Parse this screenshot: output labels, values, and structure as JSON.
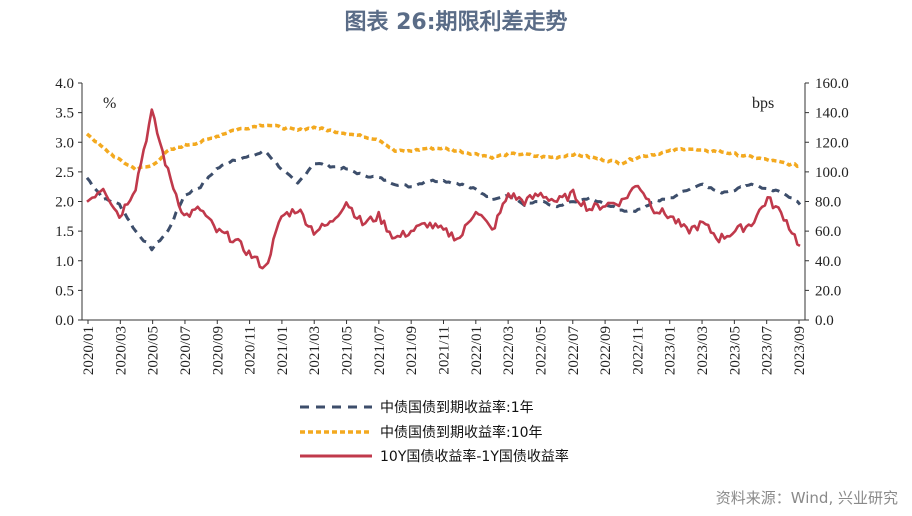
{
  "title": "图表 26:期限利差走势",
  "source": "资料来源：Wind, 兴业研究",
  "chart_data": {
    "type": "line",
    "title": "图表 26:期限利差走势",
    "left_axis": {
      "unit": "%",
      "ylim": [
        0,
        4
      ],
      "ticks": [
        "0.0",
        "0.5",
        "1.0",
        "1.5",
        "2.0",
        "2.5",
        "3.0",
        "3.5",
        "4.0"
      ]
    },
    "right_axis": {
      "unit": "bps",
      "ylim": [
        0,
        160
      ],
      "ticks": [
        "0.0",
        "20.0",
        "40.0",
        "60.0",
        "80.0",
        "100.0",
        "120.0",
        "140.0",
        "160.0"
      ]
    },
    "x_tick_labels": [
      "2020/01",
      "2020/03",
      "2020/05",
      "2020/07",
      "2020/09",
      "2020/11",
      "2021/01",
      "2021/03",
      "2021/05",
      "2021/07",
      "2021/09",
      "2021/11",
      "2022/01",
      "2022/03",
      "2022/05",
      "2022/07",
      "2022/09",
      "2022/11",
      "2023/01",
      "2023/03",
      "2023/05",
      "2023/07",
      "2023/09"
    ],
    "x": [
      "2020/01",
      "2020/02",
      "2020/03",
      "2020/04",
      "2020/05",
      "2020/06",
      "2020/07",
      "2020/08",
      "2020/09",
      "2020/10",
      "2020/11",
      "2020/12",
      "2021/01",
      "2021/02",
      "2021/03",
      "2021/04",
      "2021/05",
      "2021/06",
      "2021/07",
      "2021/08",
      "2021/09",
      "2021/10",
      "2021/11",
      "2021/12",
      "2022/01",
      "2022/02",
      "2022/03",
      "2022/04",
      "2022/05",
      "2022/06",
      "2022/07",
      "2022/08",
      "2022/09",
      "2022/10",
      "2022/11",
      "2022/12",
      "2023/01",
      "2023/02",
      "2023/03",
      "2023/04",
      "2023/05",
      "2023/06",
      "2023/07",
      "2023/08",
      "2023/09"
    ],
    "series": [
      {
        "name": "中债国债到期收益率:1年",
        "axis": "left",
        "style": "dash-dark",
        "color": "#3d4e6b",
        "values": [
          2.4,
          2.05,
          1.95,
          1.5,
          1.2,
          1.5,
          2.1,
          2.25,
          2.55,
          2.7,
          2.75,
          2.85,
          2.55,
          2.3,
          2.65,
          2.6,
          2.55,
          2.45,
          2.4,
          2.3,
          2.25,
          2.35,
          2.35,
          2.3,
          2.2,
          2.05,
          2.1,
          1.95,
          2.0,
          1.9,
          2.0,
          2.05,
          1.95,
          1.85,
          1.85,
          2.0,
          2.05,
          2.2,
          2.3,
          2.15,
          2.2,
          2.3,
          2.2,
          2.15,
          1.95
        ]
      },
      {
        "name": "中债国债到期收益率:10年",
        "axis": "left",
        "style": "dash-gold",
        "color": "#f3a91f",
        "values": [
          3.15,
          2.9,
          2.7,
          2.55,
          2.6,
          2.85,
          2.95,
          3.0,
          3.1,
          3.2,
          3.25,
          3.3,
          3.25,
          3.2,
          3.25,
          3.2,
          3.15,
          3.1,
          3.05,
          2.85,
          2.85,
          2.9,
          2.9,
          2.85,
          2.8,
          2.75,
          2.8,
          2.8,
          2.75,
          2.75,
          2.8,
          2.75,
          2.7,
          2.65,
          2.75,
          2.8,
          2.85,
          2.9,
          2.85,
          2.85,
          2.8,
          2.75,
          2.7,
          2.65,
          2.6
        ]
      },
      {
        "name": "10Y国债收益率-1Y国债收益率",
        "axis": "right",
        "style": "solid",
        "color": "#c0394b",
        "values": [
          80,
          90,
          70,
          90,
          140,
          100,
          70,
          75,
          60,
          55,
          45,
          35,
          70,
          75,
          60,
          65,
          80,
          65,
          70,
          55,
          60,
          65,
          60,
          55,
          75,
          60,
          85,
          80,
          85,
          80,
          85,
          75,
          78,
          80,
          92,
          75,
          70,
          60,
          65,
          55,
          60,
          65,
          82,
          70,
          50
        ]
      }
    ],
    "legend_placement": "bottom",
    "grid": false
  }
}
